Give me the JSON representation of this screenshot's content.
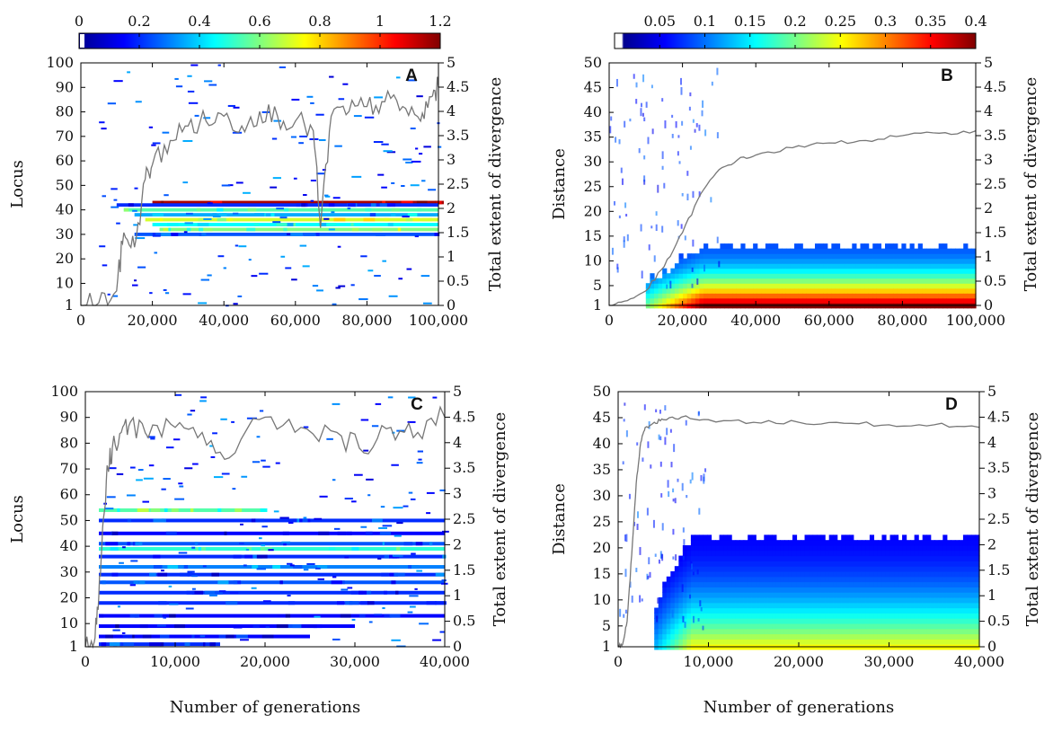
{
  "figure": {
    "shared_xlabel": "Number of generations"
  },
  "chart_data": [
    {
      "panel": "A",
      "type": "heatmap",
      "xlabel": "",
      "ylabel": "Locus",
      "y2label": "Total extent of divergence",
      "xlim": [
        0,
        100000
      ],
      "ylim": [
        1,
        100
      ],
      "y2lim": [
        0,
        5
      ],
      "xticks": [
        0,
        20000,
        40000,
        60000,
        80000,
        100000
      ],
      "xtick_labels": [
        "0",
        "20,000",
        "40,000",
        "60,000",
        "80,000",
        "100,000"
      ],
      "yticks": [
        1,
        10,
        20,
        30,
        40,
        50,
        60,
        70,
        80,
        90,
        100
      ],
      "ytick_labels": [
        "1",
        "10",
        "20",
        "30",
        "40",
        "50",
        "60",
        "70",
        "80",
        "90",
        "100"
      ],
      "y2ticks": [
        0,
        0.5,
        1,
        1.5,
        2,
        2.5,
        3,
        3.5,
        4,
        4.5,
        5
      ],
      "y2tick_labels": [
        "0",
        "0.5",
        "1",
        "1.5",
        "2",
        "2.5",
        "3",
        "3.5",
        "4",
        "4.5",
        "5"
      ],
      "colorbar": {
        "range": [
          0,
          1.2
        ],
        "ticks": [
          0,
          0.2,
          0.4,
          0.6,
          0.8,
          1,
          1.2
        ],
        "tick_labels": [
          "0",
          "0.2",
          "0.4",
          "0.6",
          "0.8",
          "1",
          "1.2"
        ]
      },
      "bands": [
        {
          "y": 43,
          "x_start": 20000,
          "x_end": 100000,
          "value": 1.15
        },
        {
          "y": 42,
          "x_start": 10000,
          "x_end": 100000,
          "value": 0.2
        },
        {
          "y": 40,
          "x_start": 12000,
          "x_end": 100000,
          "value": 0.55
        },
        {
          "y": 38,
          "x_start": 15000,
          "x_end": 100000,
          "value": 0.35
        },
        {
          "y": 36,
          "x_start": 18000,
          "x_end": 100000,
          "value": 0.7
        },
        {
          "y": 34,
          "x_start": 20000,
          "x_end": 100000,
          "value": 0.45
        },
        {
          "y": 32,
          "x_start": 22000,
          "x_end": 100000,
          "value": 0.6
        },
        {
          "y": 30,
          "x_start": 15000,
          "x_end": 100000,
          "value": 0.25
        }
      ],
      "divergence_line": {
        "x": [
          0,
          5000,
          10000,
          12000,
          15000,
          18000,
          20000,
          25000,
          30000,
          35000,
          40000,
          45000,
          50000,
          55000,
          60000,
          65000,
          67000,
          70000,
          75000,
          80000,
          85000,
          90000,
          95000,
          98000,
          100000
        ],
        "y": [
          0,
          0.05,
          0.3,
          1.5,
          1.2,
          2.6,
          2.9,
          3.4,
          3.7,
          3.8,
          3.9,
          3.7,
          4.0,
          3.9,
          3.8,
          3.6,
          1.6,
          3.9,
          4.0,
          4.1,
          4.2,
          4.1,
          3.8,
          4.3,
          4.5
        ]
      },
      "label": "A"
    },
    {
      "panel": "B",
      "type": "heatmap",
      "xlabel": "",
      "ylabel": "Distance",
      "y2label": "Total extent of divergence",
      "xlim": [
        0,
        100000
      ],
      "ylim": [
        1,
        50
      ],
      "y2lim": [
        0,
        5
      ],
      "xticks": [
        0,
        20000,
        40000,
        60000,
        80000,
        100000
      ],
      "xtick_labels": [
        "0",
        "20,000",
        "40,000",
        "60,000",
        "80,000",
        "100,000"
      ],
      "yticks": [
        1,
        5,
        10,
        15,
        20,
        25,
        30,
        35,
        40,
        45,
        50
      ],
      "ytick_labels": [
        "1",
        "5",
        "10",
        "15",
        "20",
        "25",
        "30",
        "35",
        "40",
        "45",
        "50"
      ],
      "y2ticks": [
        0,
        0.5,
        1,
        1.5,
        2,
        2.5,
        3,
        3.5,
        4,
        4.5,
        5
      ],
      "y2tick_labels": [
        "0",
        "0.5",
        "1",
        "1.5",
        "2",
        "2.5",
        "3",
        "3.5",
        "4",
        "4.5",
        "5"
      ],
      "colorbar": {
        "range": [
          0,
          0.4
        ],
        "ticks": [
          0.05,
          0.1,
          0.15,
          0.2,
          0.25,
          0.3,
          0.35,
          0.4
        ],
        "tick_labels": [
          "0.05",
          "0.1",
          "0.15",
          "0.2",
          "0.25",
          "0.3",
          "0.35",
          "0.4"
        ]
      },
      "density": {
        "x_start": 10000,
        "x_full": 25000,
        "x_end": 100000,
        "max_distance": 13,
        "peak_value": 0.4
      },
      "divergence_line": {
        "x": [
          0,
          5000,
          10000,
          15000,
          20000,
          25000,
          30000,
          35000,
          40000,
          50000,
          60000,
          70000,
          80000,
          90000,
          100000
        ],
        "y": [
          0,
          0.1,
          0.3,
          0.8,
          1.5,
          2.3,
          2.8,
          3.0,
          3.1,
          3.25,
          3.35,
          3.4,
          3.5,
          3.55,
          3.6
        ]
      },
      "label": "B"
    },
    {
      "panel": "C",
      "type": "heatmap",
      "xlabel": "Number of generations",
      "ylabel": "Locus",
      "y2label": "Total extent of divergence",
      "xlim": [
        0,
        40000
      ],
      "ylim": [
        1,
        100
      ],
      "y2lim": [
        0,
        5
      ],
      "xticks": [
        0,
        10000,
        20000,
        30000,
        40000
      ],
      "xtick_labels": [
        "0",
        "10,000",
        "20,000",
        "30,000",
        "40,000"
      ],
      "yticks": [
        1,
        10,
        20,
        30,
        40,
        50,
        60,
        70,
        80,
        90,
        100
      ],
      "ytick_labels": [
        "1",
        "10",
        "20",
        "30",
        "40",
        "50",
        "60",
        "70",
        "80",
        "90",
        "100"
      ],
      "y2ticks": [
        0,
        0.5,
        1,
        1.5,
        2,
        2.5,
        3,
        3.5,
        4,
        4.5,
        5
      ],
      "y2tick_labels": [
        "0",
        "0.5",
        "1",
        "1.5",
        "2",
        "2.5",
        "3",
        "3.5",
        "4",
        "4.5",
        "5"
      ],
      "bands": [
        {
          "y": 54,
          "x_start": 1500,
          "x_end": 20000,
          "value": 0.55
        },
        {
          "y": 50,
          "x_start": 1500,
          "x_end": 40000,
          "value": 0.2
        },
        {
          "y": 45,
          "x_start": 1500,
          "x_end": 40000,
          "value": 0.15
        },
        {
          "y": 41,
          "x_start": 1500,
          "x_end": 40000,
          "value": 0.25
        },
        {
          "y": 39,
          "x_start": 1500,
          "x_end": 40000,
          "value": 0.5
        },
        {
          "y": 36,
          "x_start": 1500,
          "x_end": 40000,
          "value": 0.2
        },
        {
          "y": 32,
          "x_start": 1500,
          "x_end": 40000,
          "value": 0.3
        },
        {
          "y": 29,
          "x_start": 1500,
          "x_end": 40000,
          "value": 0.2
        },
        {
          "y": 26,
          "x_start": 1500,
          "x_end": 40000,
          "value": 0.25
        },
        {
          "y": 22,
          "x_start": 1500,
          "x_end": 40000,
          "value": 0.2
        },
        {
          "y": 18,
          "x_start": 1500,
          "x_end": 40000,
          "value": 0.2
        },
        {
          "y": 13,
          "x_start": 1500,
          "x_end": 40000,
          "value": 0.15
        },
        {
          "y": 9,
          "x_start": 1500,
          "x_end": 30000,
          "value": 0.15
        },
        {
          "y": 5,
          "x_start": 1500,
          "x_end": 25000,
          "value": 0.15
        },
        {
          "y": 2,
          "x_start": 1500,
          "x_end": 15000,
          "value": 0.2
        }
      ],
      "divergence_line": {
        "x": [
          0,
          1000,
          1500,
          2000,
          2500,
          3000,
          4000,
          5000,
          7000,
          10000,
          13000,
          16000,
          20000,
          24000,
          28000,
          31000,
          34000,
          37000,
          40000
        ],
        "y": [
          0,
          0.1,
          1.0,
          2.5,
          3.5,
          3.9,
          4.2,
          4.4,
          4.1,
          4.3,
          4.2,
          3.7,
          4.5,
          4.3,
          4.2,
          3.8,
          4.3,
          4.2,
          4.5
        ]
      },
      "label": "C"
    },
    {
      "panel": "D",
      "type": "heatmap",
      "xlabel": "Number of generations",
      "ylabel": "Distance",
      "y2label": "Total extent of divergence",
      "xlim": [
        0,
        40000
      ],
      "ylim": [
        1,
        50
      ],
      "y2lim": [
        0,
        5
      ],
      "xticks": [
        0,
        10000,
        20000,
        30000,
        40000
      ],
      "xtick_labels": [
        "0",
        "10,000",
        "20,000",
        "30,000",
        "40,000"
      ],
      "yticks": [
        1,
        5,
        10,
        15,
        20,
        25,
        30,
        35,
        40,
        45,
        50
      ],
      "ytick_labels": [
        "1",
        "5",
        "10",
        "15",
        "20",
        "25",
        "30",
        "35",
        "40",
        "45",
        "50"
      ],
      "y2ticks": [
        0,
        0.5,
        1,
        1.5,
        2,
        2.5,
        3,
        3.5,
        4,
        4.5,
        5
      ],
      "y2tick_labels": [
        "0",
        "0.5",
        "1",
        "1.5",
        "2",
        "2.5",
        "3",
        "3.5",
        "4",
        "4.5",
        "5"
      ],
      "density": {
        "x_start": 4000,
        "x_full": 8000,
        "x_end": 40000,
        "max_distance": 22,
        "peak_value": 0.25
      },
      "divergence_line": {
        "x": [
          0,
          500,
          1000,
          1500,
          2000,
          2500,
          3000,
          4000,
          5000,
          7000,
          10000,
          15000,
          20000,
          25000,
          30000,
          35000,
          40000
        ],
        "y": [
          0,
          0.05,
          0.5,
          1.8,
          3.2,
          4.0,
          4.3,
          4.4,
          4.45,
          4.5,
          4.45,
          4.4,
          4.4,
          4.38,
          4.35,
          4.35,
          4.3
        ]
      },
      "label": "D"
    }
  ]
}
